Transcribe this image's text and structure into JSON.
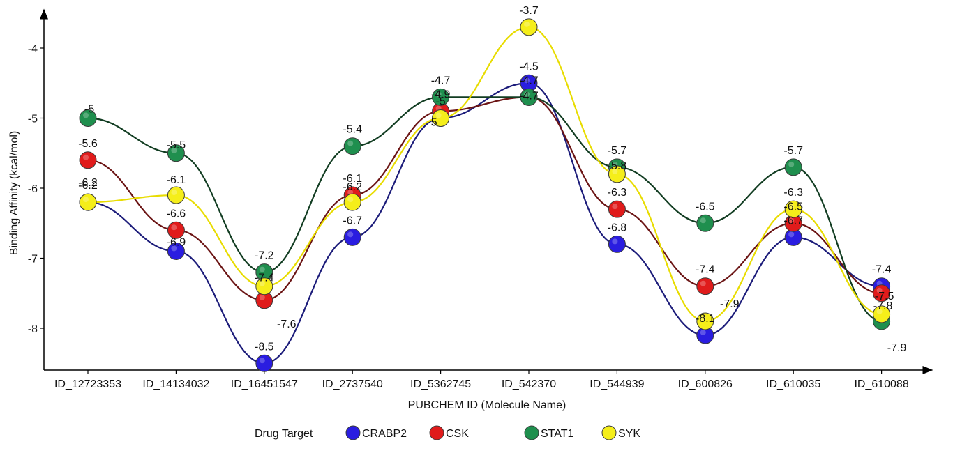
{
  "chart_data": {
    "type": "line",
    "title": "",
    "xlabel": "PUBCHEM ID (Molecule Name)",
    "ylabel": "Binding Affinity (kcal/mol)",
    "ylim": [
      -8.6,
      -3.6
    ],
    "yticks": [
      "-4",
      "-5",
      "-6",
      "-7",
      "-8"
    ],
    "categories": [
      "ID_12723353",
      "ID_14134032",
      "ID_16451547",
      "ID_2737540",
      "ID_5362745",
      "ID_542370",
      "ID_544939",
      "ID_600826",
      "ID_610035",
      "ID_610088"
    ],
    "legend_title": "Drug Target",
    "legend_position": "bottom",
    "smooth": true,
    "series": [
      {
        "name": "CRABP2",
        "marker_color": "#2a1de0",
        "line_color": "#1c1c7a",
        "values": [
          -6.2,
          -6.9,
          -8.5,
          -6.7,
          -5.0,
          -4.5,
          -6.8,
          -8.1,
          -6.7,
          -7.4
        ],
        "labels": [
          "-6.2",
          "-6.9",
          "-8.5",
          "-6.7",
          "-5",
          "-4.5",
          "-6.8",
          "-8.1",
          "-6.7",
          "-7.4"
        ]
      },
      {
        "name": "CSK",
        "marker_color": "#e01b1b",
        "line_color": "#6b1414",
        "values": [
          -5.6,
          -6.6,
          -7.6,
          -6.1,
          -4.9,
          -4.7,
          -6.3,
          -7.4,
          -6.5,
          -7.5
        ],
        "labels": [
          "-5.6",
          "-6.6",
          "-7.6",
          "-6.1",
          "-4.9",
          "-4.7",
          "-6.3",
          "-7.4",
          "-6.5",
          "-7.5"
        ]
      },
      {
        "name": "STAT1",
        "marker_color": "#1f8f4e",
        "line_color": "#123d22",
        "values": [
          -5.0,
          -5.5,
          -7.2,
          -5.4,
          -4.7,
          -4.7,
          -5.7,
          -6.5,
          -5.7,
          -7.9
        ],
        "labels": [
          "-5",
          "-5.5",
          "-7.2",
          "-5.4",
          "-4.7",
          "-4.7",
          "-5.7",
          "-6.5",
          "-5.7",
          "-7.9"
        ]
      },
      {
        "name": "SYK",
        "marker_color": "#f5ee1a",
        "line_color": "#e8dc00",
        "values": [
          -6.2,
          -6.1,
          -7.4,
          -6.2,
          -5.0,
          -3.7,
          -5.8,
          -7.9,
          -6.3,
          -7.8
        ],
        "labels": [
          "-6.2",
          "-6.1",
          "-7.4",
          "-6.2",
          "-5",
          "-3.7",
          "-5.8",
          "-7.9",
          "-6.3",
          "-7.8"
        ]
      }
    ]
  }
}
